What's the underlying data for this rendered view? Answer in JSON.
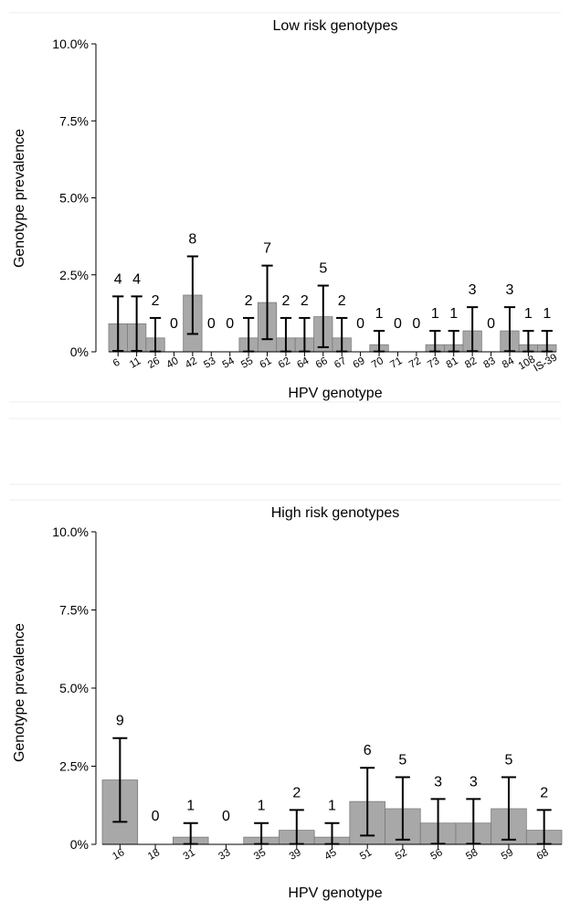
{
  "chart_data": [
    {
      "type": "bar",
      "title": "Low risk genotypes",
      "xlabel": "HPV genotype",
      "ylabel": "Genotype prevalence",
      "ylim": [
        0,
        10
      ],
      "yticks": [
        "0%",
        "2.5%",
        "5.0%",
        "7.5%",
        "10.0%"
      ],
      "grid": false,
      "categories": [
        "6",
        "11",
        "26",
        "40",
        "42",
        "53",
        "54",
        "55",
        "61",
        "62",
        "64",
        "66",
        "67",
        "69",
        "70",
        "71",
        "72",
        "73",
        "81",
        "82",
        "83",
        "84",
        "108",
        "IS-39"
      ],
      "values": [
        0.91,
        0.91,
        0.45,
        0,
        1.84,
        0,
        0,
        0.45,
        1.6,
        0.45,
        0.45,
        1.14,
        0.45,
        0,
        0.23,
        0,
        0,
        0.23,
        0.23,
        0.68,
        0,
        0.68,
        0.23,
        0.23
      ],
      "ci_low": [
        0.03,
        0.03,
        0.01,
        null,
        0.58,
        null,
        null,
        0.01,
        0.41,
        0.01,
        0.01,
        0.15,
        0.01,
        null,
        0.01,
        null,
        null,
        0.01,
        0.01,
        0.02,
        null,
        0.02,
        0.01,
        0.01
      ],
      "ci_high": [
        1.8,
        1.8,
        1.1,
        null,
        3.1,
        null,
        null,
        1.1,
        2.8,
        1.1,
        1.1,
        2.15,
        1.1,
        null,
        0.68,
        null,
        null,
        0.68,
        0.68,
        1.45,
        null,
        1.45,
        0.68,
        0.68
      ],
      "counts": [
        "4",
        "4",
        "2",
        "0",
        "8",
        "0",
        "0",
        "2",
        "7",
        "2",
        "2",
        "5",
        "2",
        "0",
        "1",
        "0",
        "0",
        "1",
        "1",
        "3",
        "0",
        "3",
        "1",
        "1"
      ],
      "bar_color": "#a8a8a8"
    },
    {
      "type": "bar",
      "title": "High risk genotypes",
      "xlabel": "HPV genotype",
      "ylabel": "Genotype prevalence",
      "ylim": [
        0,
        10
      ],
      "yticks": [
        "0%",
        "2.5%",
        "5.0%",
        "7.5%",
        "10.0%"
      ],
      "grid": false,
      "categories": [
        "16",
        "18",
        "31",
        "33",
        "35",
        "39",
        "45",
        "51",
        "52",
        "56",
        "58",
        "59",
        "68"
      ],
      "values": [
        2.06,
        0,
        0.23,
        0,
        0.23,
        0.45,
        0.23,
        1.37,
        1.14,
        0.68,
        0.68,
        1.14,
        0.45
      ],
      "ci_low": [
        0.72,
        null,
        0.01,
        null,
        0.01,
        0.01,
        0.01,
        0.28,
        0.15,
        0.02,
        0.02,
        0.15,
        0.01
      ],
      "ci_high": [
        3.4,
        null,
        0.68,
        null,
        0.68,
        1.1,
        0.68,
        2.45,
        2.15,
        1.45,
        1.45,
        2.15,
        1.1
      ],
      "counts": [
        "9",
        "0",
        "1",
        "0",
        "1",
        "2",
        "1",
        "6",
        "5",
        "3",
        "3",
        "5",
        "2"
      ],
      "bar_color": "#a8a8a8"
    }
  ]
}
